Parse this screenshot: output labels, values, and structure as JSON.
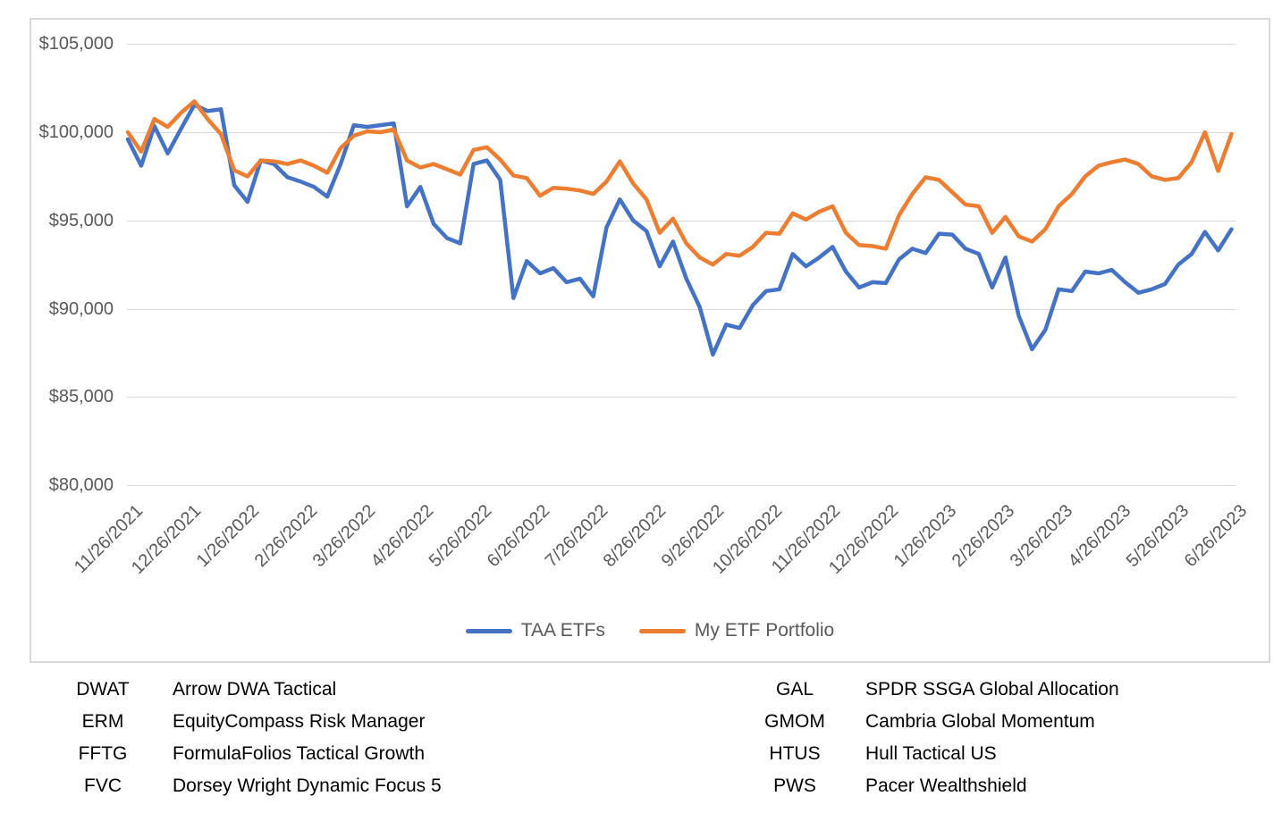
{
  "chart": {
    "title": "",
    "y_axis": {
      "tick_labels": [
        "$105,000",
        "$100,000",
        "$95,000",
        "$90,000",
        "$85,000",
        "$80,000"
      ]
    },
    "x_axis": {
      "tick_labels": [
        "11/26/2021",
        "12/26/2021",
        "1/26/2022",
        "2/26/2022",
        "3/26/2022",
        "4/26/2022",
        "5/26/2022",
        "6/26/2022",
        "7/26/2022",
        "8/26/2022",
        "9/26/2022",
        "10/26/2022",
        "11/26/2022",
        "12/26/2022",
        "1/26/2023",
        "2/26/2023",
        "3/26/2023",
        "4/26/2023",
        "5/26/2023",
        "6/26/2023"
      ]
    },
    "legend": [
      {
        "label": "TAA ETFs",
        "color": "#4472C4"
      },
      {
        "label": "My ETF Portfolio",
        "color": "#ED7D31"
      }
    ],
    "colors": {
      "gridline": "#d9d9d9",
      "border": "#d9d9d9",
      "axis_text": "#595959",
      "table_text": "#000000"
    }
  },
  "chart_data": {
    "type": "line",
    "title": "",
    "xlabel": "",
    "ylabel": "",
    "ylim": [
      80000,
      105000
    ],
    "y_step": 5000,
    "grid": "horizontal",
    "legend_position": "bottom",
    "x_tick_labels": [
      "11/26/2021",
      "12/26/2021",
      "1/26/2022",
      "2/26/2022",
      "3/26/2022",
      "4/26/2022",
      "5/26/2022",
      "6/26/2022",
      "7/26/2022",
      "8/26/2022",
      "9/26/2022",
      "10/26/2022",
      "11/26/2022",
      "12/26/2022",
      "1/26/2023",
      "2/26/2023",
      "3/26/2023",
      "4/26/2023",
      "5/26/2023",
      "6/26/2023"
    ],
    "x_frequency": "weekly",
    "points_per_series": 84,
    "series": [
      {
        "name": "TAA ETFs",
        "color": "#4472C4",
        "values": [
          99600,
          98100,
          100350,
          98800,
          100200,
          101550,
          101200,
          101300,
          97000,
          96050,
          98400,
          98200,
          97450,
          97200,
          96900,
          96350,
          98200,
          100400,
          100300,
          100400,
          100500,
          95800,
          96900,
          94800,
          94000,
          93700,
          98200,
          98400,
          97300,
          90600,
          92700,
          92000,
          92300,
          91500,
          91700,
          90700,
          94600,
          96200,
          95000,
          94400,
          92400,
          93800,
          91700,
          90100,
          87400,
          89100,
          88900,
          90200,
          91000,
          91100,
          93100,
          92400,
          92900,
          93500,
          92100,
          91200,
          91500,
          91450,
          92800,
          93400,
          93150,
          94250,
          94200,
          93400,
          93100,
          91200,
          92900,
          89600,
          87700,
          88800,
          91100,
          91000,
          92100,
          92000,
          92200,
          91500,
          90900,
          91100,
          91400,
          92500,
          93100,
          94350,
          93300,
          94500
        ]
      },
      {
        "name": "My ETF Portfolio",
        "color": "#ED7D31",
        "values": [
          100000,
          98900,
          100750,
          100300,
          101100,
          101750,
          100750,
          99900,
          97850,
          97500,
          98400,
          98350,
          98200,
          98400,
          98100,
          97700,
          99100,
          99800,
          100050,
          100000,
          100150,
          98400,
          98000,
          98200,
          97900,
          97600,
          99000,
          99150,
          98450,
          97550,
          97400,
          96400,
          96850,
          96800,
          96700,
          96500,
          97200,
          98350,
          97100,
          96200,
          94300,
          95100,
          93700,
          92900,
          92500,
          93100,
          93000,
          93500,
          94300,
          94250,
          95400,
          95050,
          95500,
          95800,
          94300,
          93600,
          93550,
          93400,
          95300,
          96500,
          97450,
          97300,
          96600,
          95900,
          95800,
          94300,
          95200,
          94100,
          93800,
          94500,
          95800,
          96500,
          97500,
          98100,
          98300,
          98450,
          98200,
          97500,
          97300,
          97400,
          98300,
          100000,
          97800,
          99900
        ]
      }
    ]
  },
  "ticker_table": {
    "left": [
      {
        "symbol": "DWAT",
        "name": "Arrow DWA Tactical"
      },
      {
        "symbol": "ERM",
        "name": "EquityCompass Risk Manager"
      },
      {
        "symbol": "FFTG",
        "name": "FormulaFolios Tactical Growth"
      },
      {
        "symbol": "FVC",
        "name": "Dorsey Wright Dynamic Focus 5"
      }
    ],
    "right": [
      {
        "symbol": "GAL",
        "name": "SPDR SSGA Global Allocation"
      },
      {
        "symbol": "GMOM",
        "name": "Cambria Global Momentum"
      },
      {
        "symbol": "HTUS",
        "name": "Hull Tactical US"
      },
      {
        "symbol": "PWS",
        "name": "Pacer Wealthshield"
      }
    ]
  }
}
